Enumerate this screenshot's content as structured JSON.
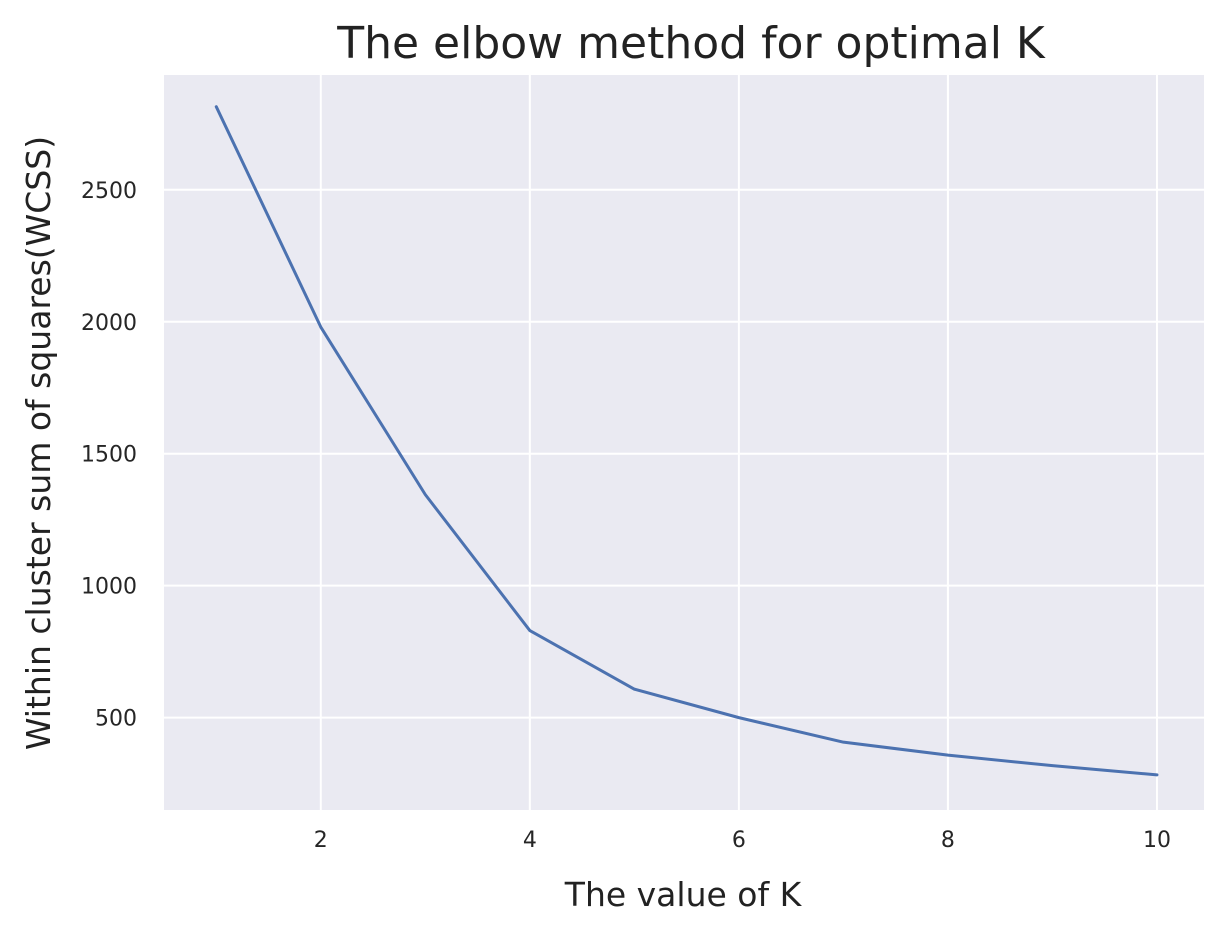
{
  "chart_data": {
    "type": "line",
    "title": "The elbow method for optimal K",
    "xlabel": "The value of K",
    "ylabel": "Within cluster sum of squares(WCSS)",
    "x": [
      1,
      2,
      3,
      4,
      5,
      6,
      7,
      8,
      9,
      10
    ],
    "series": [
      {
        "values": [
          2815,
          1980,
          1345,
          830,
          608,
          500,
          407,
          358,
          318,
          283
        ],
        "color": "#4c72b0"
      }
    ],
    "xlim": [
      0.5,
      10.45
    ],
    "ylim": [
      150,
      2935
    ],
    "xticks": [
      2,
      4,
      6,
      8,
      10
    ],
    "xtick_labels": [
      "2",
      "4",
      "6",
      "8",
      "10"
    ],
    "yticks": [
      500,
      1000,
      1500,
      2000,
      2500
    ],
    "ytick_labels": [
      "500",
      "1000",
      "1500",
      "2000",
      "2500"
    ],
    "grid": true,
    "legend": false
  },
  "colors": {
    "plot_background": "#eaeaf2",
    "grid": "#ffffff",
    "line": "#4c72b0"
  }
}
